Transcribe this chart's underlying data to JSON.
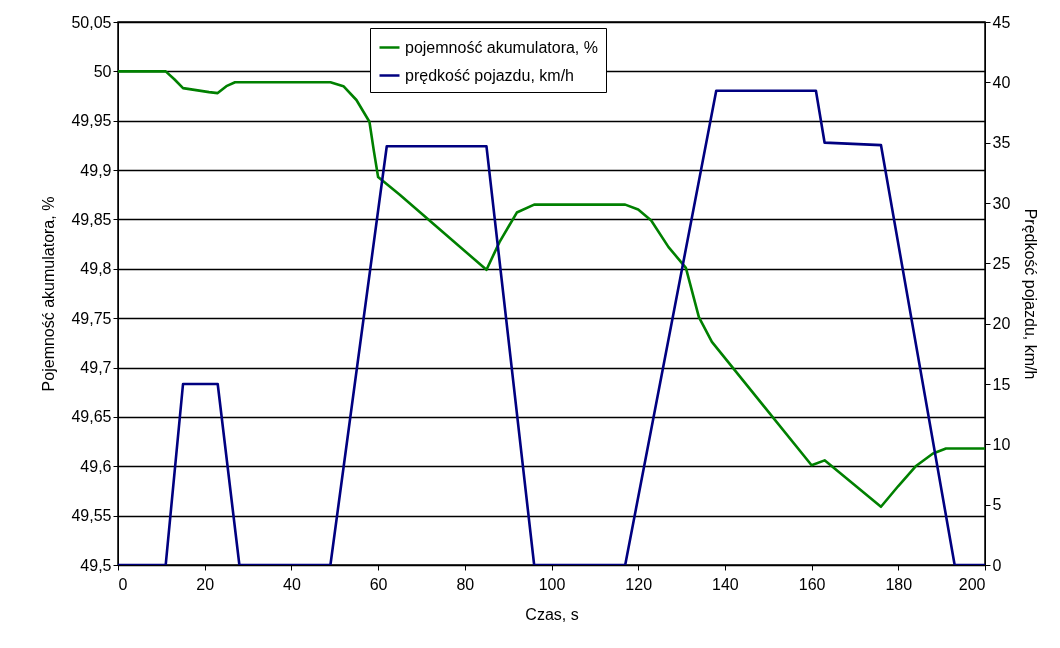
{
  "chart_data": {
    "type": "line",
    "xlabel": "Czas, s",
    "ylabel": "Pojemność akumulatora, %",
    "y2label": "Prędkość pojazdu, km/h",
    "xlim": [
      0,
      200
    ],
    "xticks": [
      0,
      20,
      40,
      60,
      80,
      100,
      120,
      140,
      160,
      180,
      200
    ],
    "ylim": [
      49.5,
      50.05
    ],
    "yticks": [
      {
        "value": 49.5,
        "label": "49,5"
      },
      {
        "value": 49.55,
        "label": "49,55"
      },
      {
        "value": 49.6,
        "label": "49,6"
      },
      {
        "value": 49.65,
        "label": "49,65"
      },
      {
        "value": 49.7,
        "label": "49,7"
      },
      {
        "value": 49.75,
        "label": "49,75"
      },
      {
        "value": 49.8,
        "label": "49,8"
      },
      {
        "value": 49.85,
        "label": "49,85"
      },
      {
        "value": 49.9,
        "label": "49,9"
      },
      {
        "value": 49.95,
        "label": "49,95"
      },
      50,
      {
        "value": 50.05,
        "label": "50,05"
      }
    ],
    "y2lim": [
      0,
      45
    ],
    "y2ticks": [
      0,
      5,
      10,
      15,
      20,
      25,
      30,
      35,
      40,
      45
    ],
    "grid": "y",
    "legend": "top",
    "marker": "none",
    "line_style": "solid",
    "series": [
      {
        "name": "pojemność akumulatora, %",
        "color": "#008000",
        "x": [
          0,
          11,
          13,
          15,
          21,
          23,
          25,
          27,
          49,
          52,
          55,
          58,
          59,
          60,
          65,
          85,
          88,
          92,
          96,
          117,
          120,
          123,
          127,
          131,
          134,
          137,
          160,
          163,
          176,
          180,
          184,
          188,
          191,
          200
        ],
        "values": [
          50,
          50,
          49.992,
          49.983,
          49.979,
          49.978,
          49.985,
          49.989,
          49.989,
          49.985,
          49.971,
          49.949,
          49.92,
          49.893,
          49.875,
          49.799,
          49.827,
          49.857,
          49.865,
          49.865,
          49.86,
          49.849,
          49.822,
          49.801,
          49.751,
          49.726,
          49.601,
          49.606,
          49.559,
          49.58,
          49.6,
          49.613,
          49.618,
          49.618
        ]
      },
      {
        "name": "prędkość pojazdu, km/h",
        "color": "#000080",
        "axis": "y2",
        "x": [
          0,
          11,
          15,
          23,
          28,
          49,
          62,
          85,
          96,
          117,
          138,
          161,
          163,
          176,
          193,
          200
        ],
        "values": [
          0,
          0,
          15,
          15,
          0,
          0,
          34.7,
          34.7,
          0,
          0,
          39.3,
          39.3,
          35,
          34.8,
          0,
          0
        ]
      }
    ]
  }
}
